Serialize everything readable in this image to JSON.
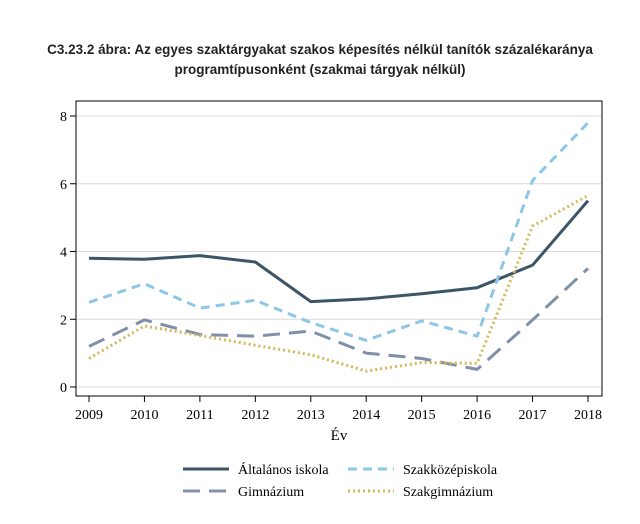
{
  "chart_data": {
    "type": "line",
    "title_line1": "C3.23.2 ábra: Az egyes szaktárgyakat szakos képesítés nélkül tanítók százalékaránya",
    "title_line2": "programtípusonként (szakmai tárgyak nélkül)",
    "xlabel": "Év",
    "ylabel": "",
    "x": [
      2009,
      2010,
      2011,
      2012,
      2013,
      2014,
      2015,
      2016,
      2017,
      2018
    ],
    "xlim": [
      2009,
      2018
    ],
    "ylim": [
      0,
      8
    ],
    "yticks": [
      0,
      2,
      4,
      6,
      8
    ],
    "grid": true,
    "legend_position": "bottom",
    "series": [
      {
        "name": "Általános iskola",
        "color": "#3b5566",
        "dash": "solid",
        "values": [
          3.8,
          3.77,
          3.88,
          3.69,
          2.52,
          2.6,
          2.75,
          2.93,
          3.6,
          5.5
        ]
      },
      {
        "name": "Szakközépiskola",
        "color": "#8ec6e6",
        "dash": "dash",
        "values": [
          2.5,
          3.05,
          2.33,
          2.56,
          1.9,
          1.38,
          1.95,
          1.5,
          6.1,
          7.8
        ]
      },
      {
        "name": "Gimnázium",
        "color": "#8090a8",
        "dash": "longdash",
        "values": [
          1.2,
          1.98,
          1.55,
          1.5,
          1.65,
          1.0,
          0.84,
          0.52,
          1.98,
          3.5
        ]
      },
      {
        "name": "Szakgimnázium",
        "color": "#d4b85a",
        "dash": "dot",
        "values": [
          0.84,
          1.8,
          1.52,
          1.23,
          0.95,
          0.47,
          0.72,
          0.7,
          4.75,
          5.65
        ]
      }
    ]
  }
}
